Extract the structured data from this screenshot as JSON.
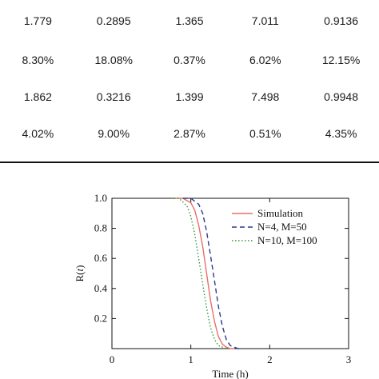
{
  "table": {
    "rows": [
      [
        "1.779",
        "0.2895",
        "1.365",
        "7.011",
        "0.9136"
      ],
      [
        "8.30%",
        "18.08%",
        "0.37%",
        "6.02%",
        "12.15%"
      ],
      [
        "1.862",
        "0.3216",
        "1.399",
        "7.498",
        "0.9948"
      ],
      [
        "4.02%",
        "9.00%",
        "2.87%",
        "0.51%",
        "4.35%"
      ]
    ]
  },
  "chart_data": {
    "type": "line",
    "xlabel": "Time (h)",
    "ylabel": "R(t)",
    "xlim": [
      0,
      3
    ],
    "ylim": [
      0,
      1
    ],
    "xticks": [
      "0",
      "1",
      "2",
      "3"
    ],
    "yticks": [
      "0.2",
      "0.4",
      "0.6",
      "0.8",
      "1.0"
    ],
    "legend_position": "top-right",
    "series": [
      {
        "name": "Simulation",
        "color": "#e8706a",
        "style": "solid",
        "x": [
          0.8,
          0.9,
          1.0,
          1.05,
          1.1,
          1.15,
          1.2,
          1.25,
          1.3,
          1.35,
          1.4,
          1.45,
          1.5,
          1.55
        ],
        "y": [
          1.0,
          1.0,
          0.97,
          0.92,
          0.82,
          0.68,
          0.5,
          0.32,
          0.18,
          0.08,
          0.03,
          0.01,
          0.0,
          0.0
        ]
      },
      {
        "name": "N=4, M=50",
        "color": "#2b3a8c",
        "style": "dashed",
        "x": [
          0.9,
          1.0,
          1.1,
          1.15,
          1.2,
          1.25,
          1.3,
          1.35,
          1.4,
          1.45,
          1.5,
          1.55,
          1.6,
          1.65
        ],
        "y": [
          1.0,
          1.0,
          0.96,
          0.9,
          0.78,
          0.62,
          0.45,
          0.28,
          0.15,
          0.06,
          0.02,
          0.01,
          0.0,
          0.0
        ]
      },
      {
        "name": "N=10, M=100",
        "color": "#2e9a3a",
        "style": "dotted",
        "x": [
          0.75,
          0.85,
          0.95,
          1.0,
          1.05,
          1.1,
          1.15,
          1.2,
          1.25,
          1.3,
          1.35,
          1.4,
          1.45,
          1.5
        ],
        "y": [
          1.0,
          1.0,
          0.95,
          0.88,
          0.76,
          0.6,
          0.43,
          0.27,
          0.14,
          0.06,
          0.02,
          0.01,
          0.0,
          0.0
        ]
      }
    ]
  }
}
